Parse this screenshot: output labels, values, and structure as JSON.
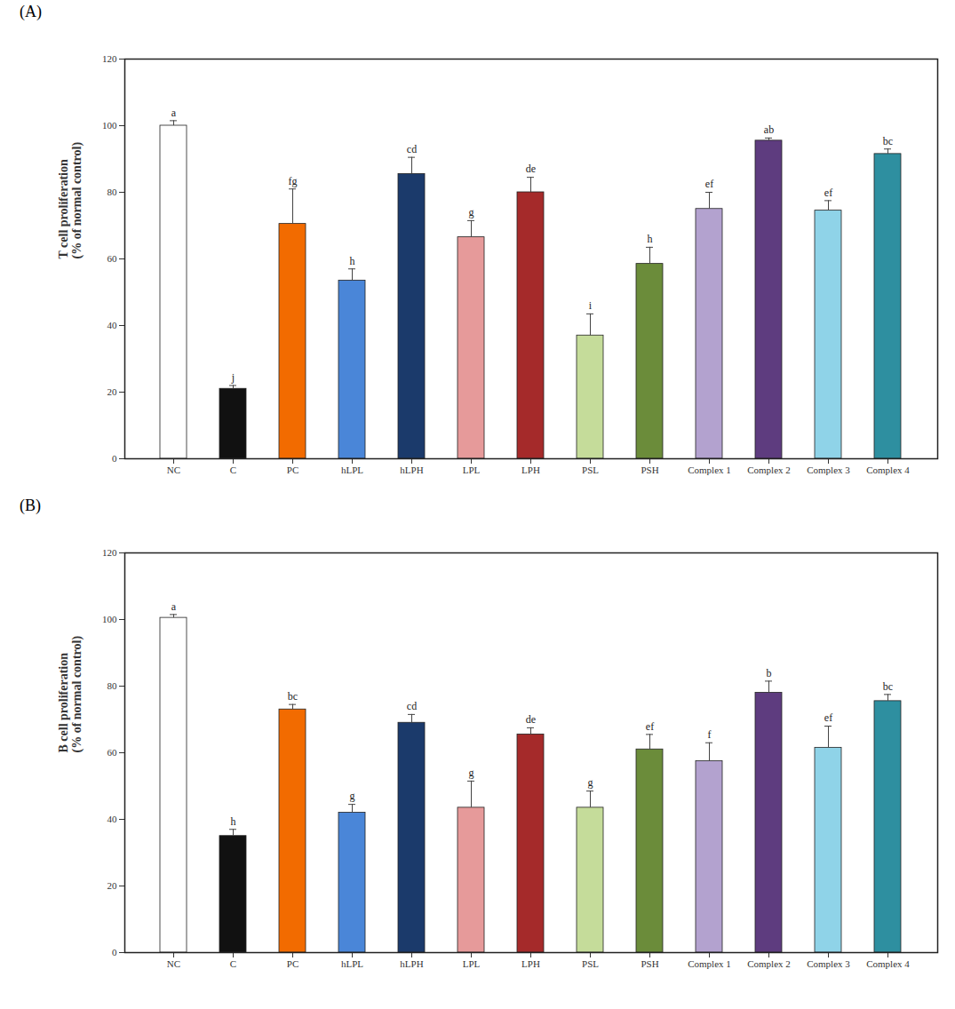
{
  "chart_data": [
    {
      "type": "bar",
      "title": "(A)",
      "ylabel": "T cell proliferation\n(% of normal control)",
      "categories": [
        "NC",
        "C",
        "PC",
        "hLPL",
        "hLPH",
        "LPL",
        "LPH",
        "PSL",
        "PSH",
        "Complex 1",
        "Complex 2",
        "Complex 3",
        "Complex 4"
      ],
      "values": [
        100,
        21,
        70.5,
        53.5,
        85.5,
        66.5,
        80,
        37,
        58.5,
        75,
        95.5,
        74.5,
        91.5
      ],
      "errors": [
        1.5,
        1,
        10.5,
        3.5,
        5,
        5,
        4.5,
        6.5,
        5,
        5,
        0.8,
        3,
        1.5
      ],
      "annotations": [
        "a",
        "j",
        "fg",
        "h",
        "cd",
        "g",
        "de",
        "i",
        "h",
        "ef",
        "ab",
        "ef",
        "bc"
      ],
      "colors": [
        "#ffffff",
        "#111111",
        "#f26b00",
        "#4a86d8",
        "#1b3a6b",
        "#e69a9a",
        "#a52a2a",
        "#c5dc9a",
        "#6b8c3a",
        "#b3a2cf",
        "#5e3c7f",
        "#8fd3e8",
        "#2e8fa0"
      ],
      "ylim": [
        0,
        120
      ],
      "yticks": [
        0,
        20,
        40,
        60,
        80,
        100,
        120
      ],
      "grid": false
    },
    {
      "type": "bar",
      "title": "(B)",
      "ylabel": "B cell proliferation\n(% of normal control)",
      "categories": [
        "NC",
        "C",
        "PC",
        "hLPL",
        "hLPH",
        "LPL",
        "LPH",
        "PSL",
        "PSH",
        "Complex 1",
        "Complex 2",
        "Complex 3",
        "Complex 4"
      ],
      "values": [
        100.5,
        35,
        73,
        42,
        69,
        43.5,
        65.5,
        43.5,
        61,
        57.5,
        78,
        61.5,
        75.5
      ],
      "errors": [
        1,
        2,
        1.5,
        2.5,
        2.5,
        8,
        2,
        5,
        4.5,
        5.5,
        3.5,
        6.5,
        2
      ],
      "annotations": [
        "a",
        "h",
        "bc",
        "g",
        "cd",
        "g",
        "de",
        "g",
        "ef",
        "f",
        "b",
        "ef",
        "bc"
      ],
      "colors": [
        "#ffffff",
        "#111111",
        "#f26b00",
        "#4a86d8",
        "#1b3a6b",
        "#e69a9a",
        "#a52a2a",
        "#c5dc9a",
        "#6b8c3a",
        "#b3a2cf",
        "#5e3c7f",
        "#8fd3e8",
        "#2e8fa0"
      ],
      "ylim": [
        0,
        120
      ],
      "yticks": [
        0,
        20,
        40,
        60,
        80,
        100,
        120
      ],
      "grid": false
    }
  ]
}
